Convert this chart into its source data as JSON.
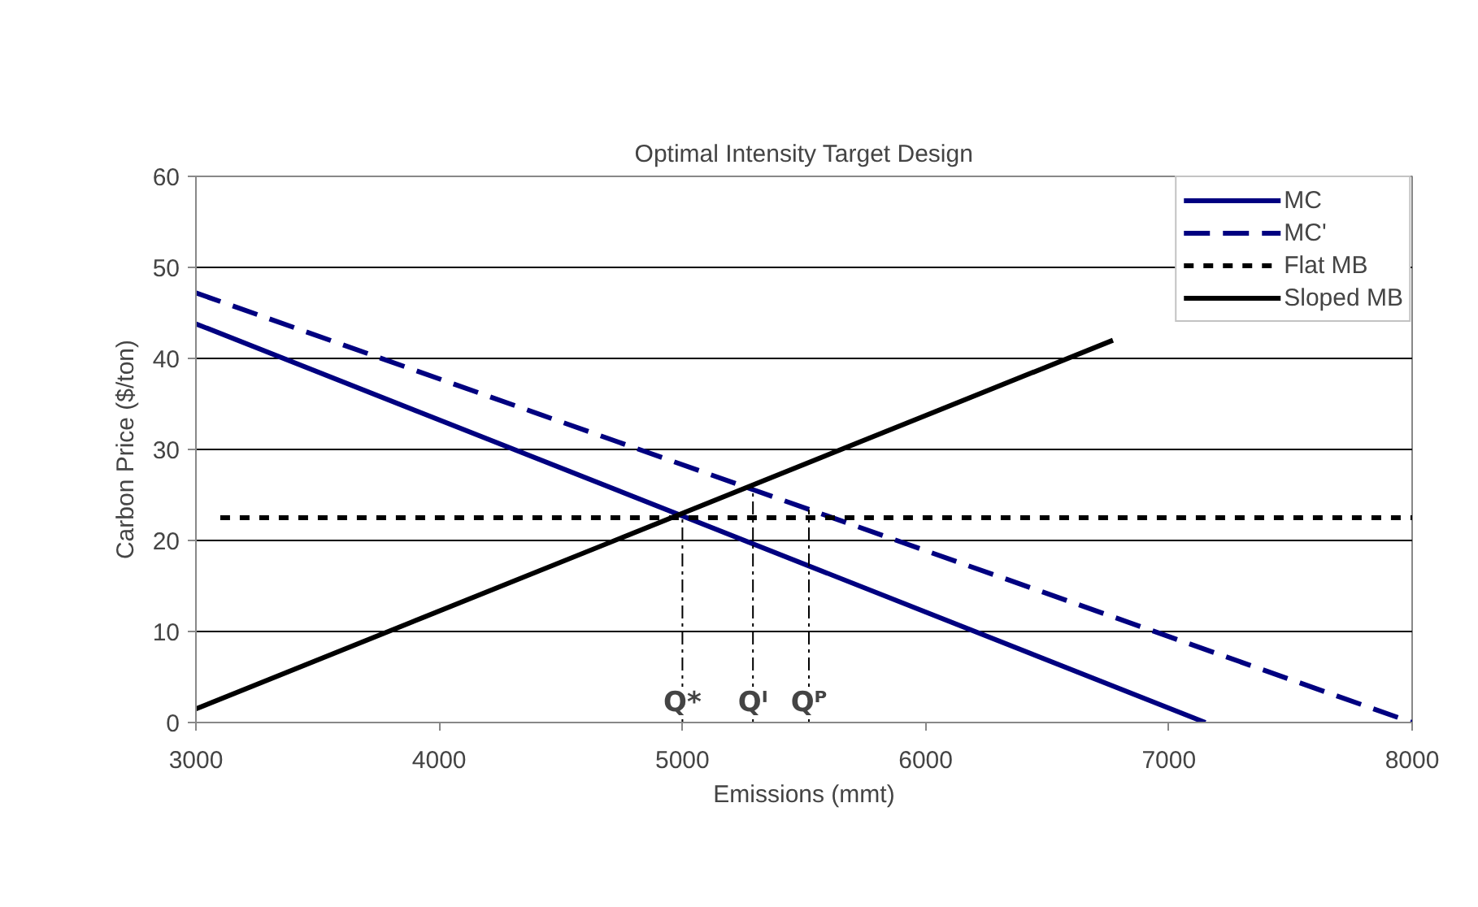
{
  "chart_data": {
    "type": "line",
    "title": "Optimal Intensity Target Design",
    "xlabel": "Emissions (mmt)",
    "ylabel": "Carbon Price ($/ton)",
    "xlim": [
      3000,
      8000
    ],
    "ylim": [
      0,
      60
    ],
    "xticks": [
      3000,
      4000,
      5000,
      6000,
      7000,
      8000
    ],
    "yticks": [
      0,
      10,
      20,
      30,
      40,
      50,
      60
    ],
    "grid": "y",
    "legend": "top right",
    "marker": "none",
    "series": [
      {
        "name": "MC",
        "color": "#000080",
        "line_style": "solid",
        "x": [
          3000,
          7150
        ],
        "values": [
          43.8,
          0
        ]
      },
      {
        "name": "MC'",
        "color": "#000080",
        "line_style": "dashed",
        "x": [
          3000,
          8000
        ],
        "values": [
          47.2,
          0
        ]
      },
      {
        "name": "Flat MB",
        "color": "#000000",
        "line_style": "dotted",
        "x": [
          3100,
          8000
        ],
        "values": [
          22.5,
          22.5
        ]
      },
      {
        "name": "Sloped MB",
        "color": "#000000",
        "line_style": "solid",
        "x": [
          3000,
          6770
        ],
        "values": [
          1.5,
          42
        ]
      },
      {
        "color": "#000000",
        "line_style": "dashdot",
        "x": [
          5000,
          5000
        ],
        "values": [
          0,
          22.8
        ]
      },
      {
        "color": "#000000",
        "line_style": "dashdot",
        "x": [
          5290,
          5290
        ],
        "values": [
          0,
          25.8
        ]
      },
      {
        "color": "#000000",
        "line_style": "dashdot",
        "x": [
          5520,
          5520
        ],
        "values": [
          0,
          23.4
        ]
      }
    ],
    "annotations": [
      {
        "text": "Q*",
        "x": 5000,
        "y": 0
      },
      {
        "text": "Qᴵ",
        "x": 5290,
        "y": 0
      },
      {
        "text": "Qᴾ",
        "x": 5520,
        "y": 0
      }
    ]
  }
}
